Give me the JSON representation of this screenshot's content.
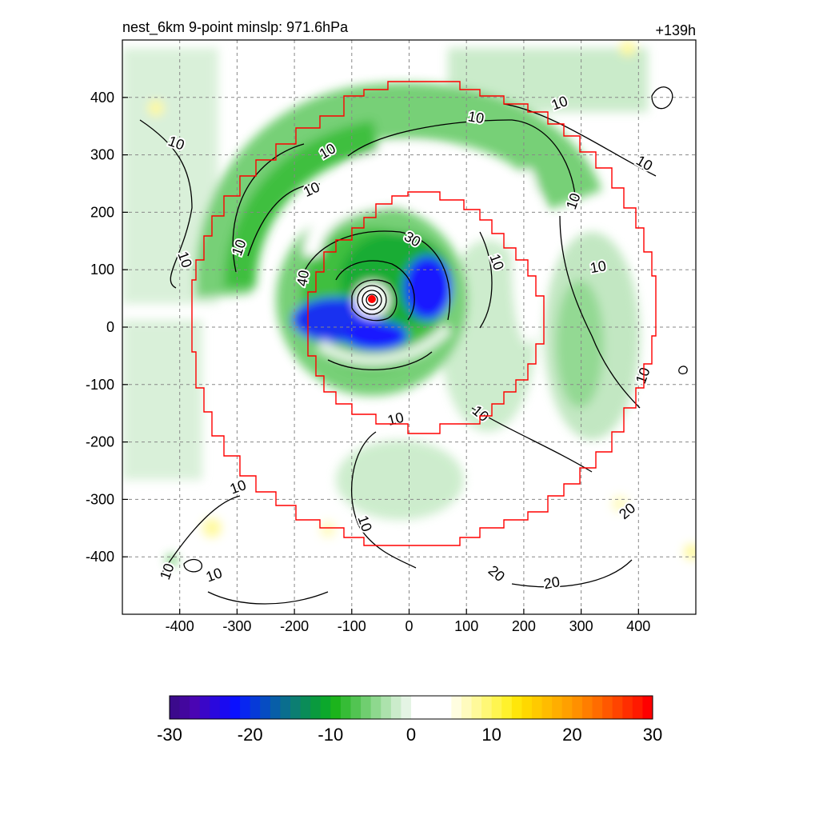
{
  "title_left": "nest_6km  9-point minslp: 971.6hPa",
  "title_right": "+139h",
  "x_ticks": [
    -400,
    -300,
    -200,
    -100,
    0,
    100,
    200,
    300,
    400
  ],
  "y_ticks": [
    400,
    300,
    200,
    100,
    0,
    -100,
    -200,
    -300,
    -400
  ],
  "axis_range": {
    "x": [
      -500,
      500
    ],
    "y": [
      -500,
      500
    ]
  },
  "grid": "dashed",
  "colorbar": {
    "ticks": [
      "-30",
      "-20",
      "-10",
      "0",
      "10",
      "20",
      "30"
    ],
    "range": [
      -30,
      30
    ],
    "colors": [
      "#3b0a8c",
      "#43079e",
      "#4a05b3",
      "#3a06c8",
      "#2a08dd",
      "#1a0af0",
      "#0a10ff",
      "#0826f0",
      "#063ad8",
      "#064cc2",
      "#085ea8",
      "#0a6e8e",
      "#0c7e72",
      "#0a8c58",
      "#0a9a3e",
      "#0ca82c",
      "#1cb41c",
      "#36bc36",
      "#52c452",
      "#70ce70",
      "#8ed88e",
      "#acE2ac",
      "#cbeccb",
      "#e4f4e4",
      "#ffffff",
      "#ffffff",
      "#ffffff",
      "#ffffff",
      "#fffde0",
      "#fffbbe",
      "#fff99a",
      "#fff776",
      "#fff550",
      "#fff12c",
      "#ffe60a",
      "#ffd800",
      "#ffca00",
      "#ffbc00",
      "#ffae00",
      "#ffa000",
      "#ff9000",
      "#ff7e00",
      "#ff6c00",
      "#ff5800",
      "#ff4400",
      "#ff2e00",
      "#ff1a00",
      "#ff0000"
    ]
  },
  "contour_labels": [
    "10",
    "10",
    "10",
    "10",
    "10",
    "10",
    "10",
    "10",
    "10",
    "10",
    "10",
    "10",
    "10",
    "10",
    "10",
    "10",
    "10",
    "10",
    "20",
    "20",
    "20",
    "30",
    "40"
  ],
  "colors": {
    "boundary": "#ff0000",
    "center": "#ff0000",
    "contour": "#000000",
    "green": "#22aa22",
    "blue": "#0a10ff"
  }
}
